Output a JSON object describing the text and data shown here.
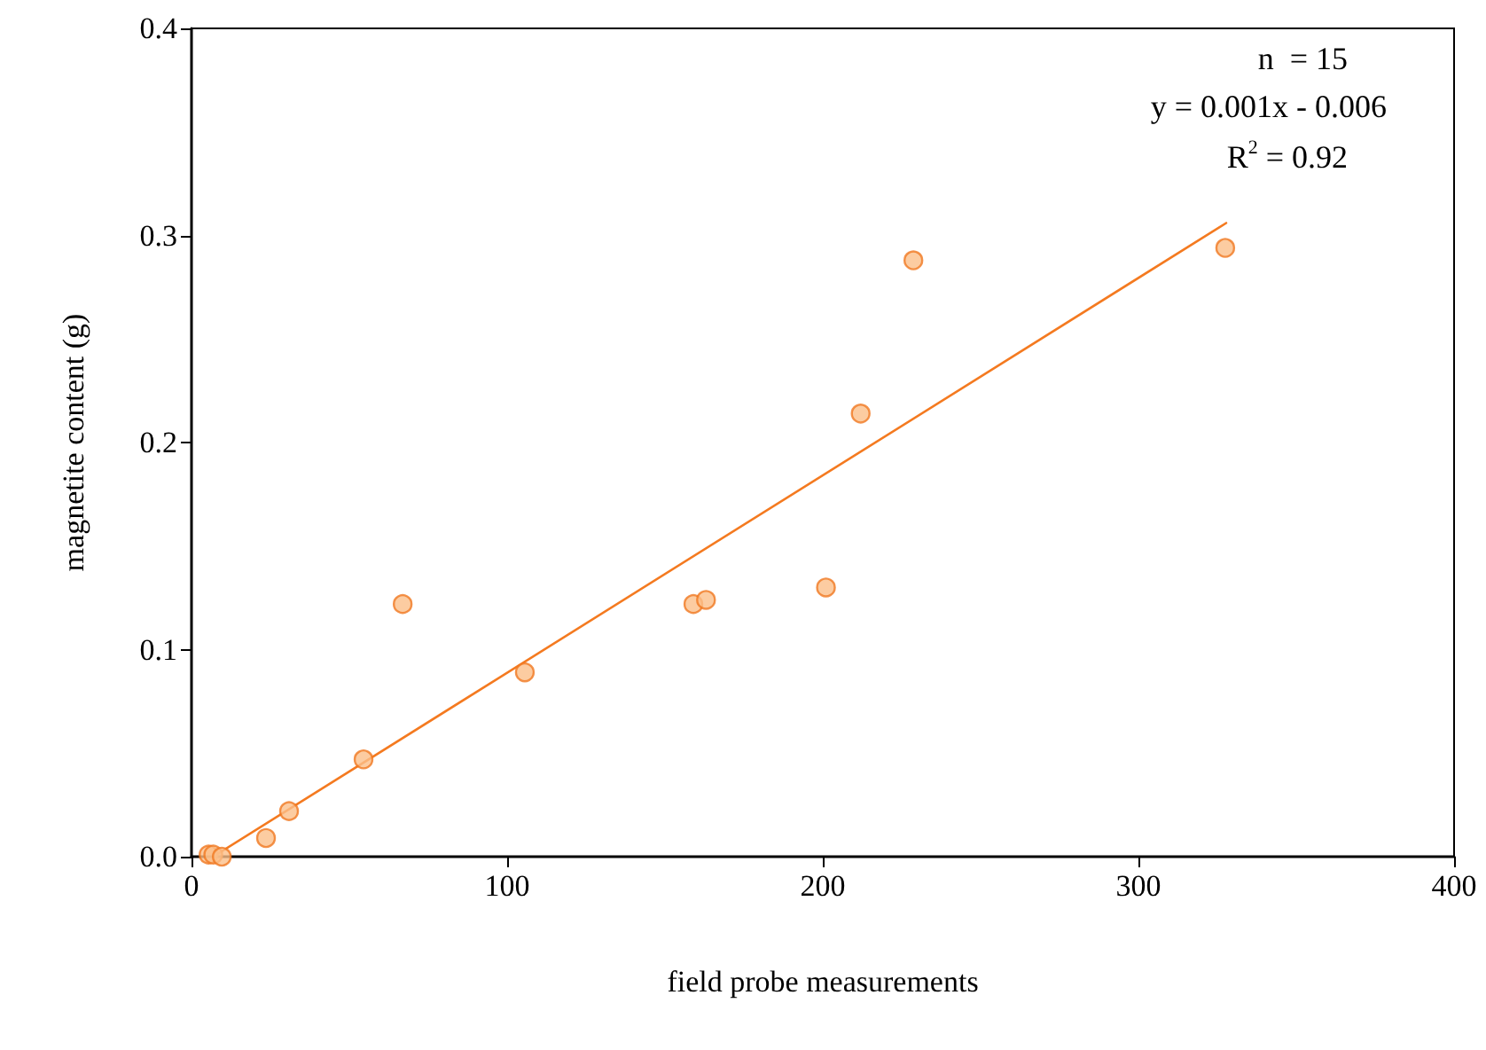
{
  "chart_data": {
    "type": "scatter",
    "xlabel": "field probe measurements",
    "ylabel": "magnetite content (g)",
    "xlim": [
      0,
      400
    ],
    "xticks": [
      0,
      100,
      200,
      300,
      400
    ],
    "ylim": [
      0,
      0.4
    ],
    "yticks": [
      {
        "value": 0,
        "label": "0.0"
      },
      0.1,
      0.2,
      0.3,
      0.4
    ],
    "grid": false,
    "marker": "circle",
    "annotations": [
      "n  = 15",
      "y = 0.001x - 0.006",
      "R$^{2}$ = 0.92"
    ],
    "series": [
      {
        "color": "#fbbf8a",
        "x": [
          5.4,
          6.9,
          9.6,
          23.6,
          30.9,
          54.5,
          66.9,
          105.6,
          159,
          163,
          201,
          212,
          228.7,
          327.5
        ],
        "values": [
          0.001,
          0.001,
          0.0,
          0.009,
          0.022,
          0.047,
          0.122,
          0.089,
          0.122,
          0.124,
          0.13,
          0.214,
          0.288,
          0.294
        ]
      },
      {
        "type": "line",
        "color": "#f47a20",
        "marker": "none",
        "line_style": "solid",
        "x": [
          7.9,
          327.8
        ],
        "values": [
          0.001,
          0.306
        ]
      }
    ]
  }
}
